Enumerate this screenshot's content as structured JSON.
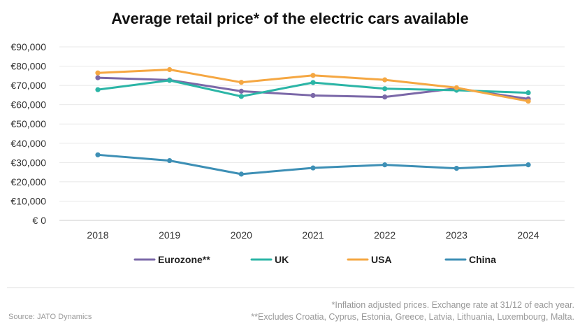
{
  "chart_data": {
    "type": "line",
    "title": "Average retail price* of the electric cars available",
    "x": [
      "2018",
      "2019",
      "2020",
      "2021",
      "2022",
      "2023",
      "2024"
    ],
    "ylim": [
      0,
      90000
    ],
    "y_ticks": [
      {
        "value": 0,
        "label": "€ 0"
      },
      {
        "value": 10000,
        "label": "€10,000"
      },
      {
        "value": 20000,
        "label": "€20,000"
      },
      {
        "value": 30000,
        "label": "€30,000"
      },
      {
        "value": 40000,
        "label": "€40,000"
      },
      {
        "value": 50000,
        "label": "€50,000"
      },
      {
        "value": 60000,
        "label": "€60,000"
      },
      {
        "value": 70000,
        "label": "€70,000"
      },
      {
        "value": 80000,
        "label": "€80,000"
      },
      {
        "value": 90000,
        "label": "€90,000"
      }
    ],
    "grid": true,
    "legend_position": "bottom",
    "series": [
      {
        "name": "Eurozone**",
        "color": "#7b68a8",
        "values": [
          74000,
          72800,
          67000,
          64800,
          64000,
          68500,
          63000
        ]
      },
      {
        "name": "UK",
        "color": "#2bb5a6",
        "values": [
          67800,
          72600,
          64300,
          71500,
          68300,
          67500,
          66200
        ]
      },
      {
        "name": "USA",
        "color": "#f5a742",
        "values": [
          76500,
          78200,
          71600,
          75200,
          72900,
          68800,
          61800
        ]
      },
      {
        "name": "China",
        "color": "#3d8fb5",
        "values": [
          34000,
          31000,
          24000,
          27200,
          28800,
          27000,
          28800
        ]
      }
    ]
  },
  "footer": {
    "source": "Source: JATO Dynamics",
    "note1": "*Inflation adjusted prices. Exchange rate at 31/12 of each year.",
    "note2": "**Excludes Croatia, Cyprus, Estonia, Greece, Latvia, Lithuania, Luxembourg, Malta."
  }
}
